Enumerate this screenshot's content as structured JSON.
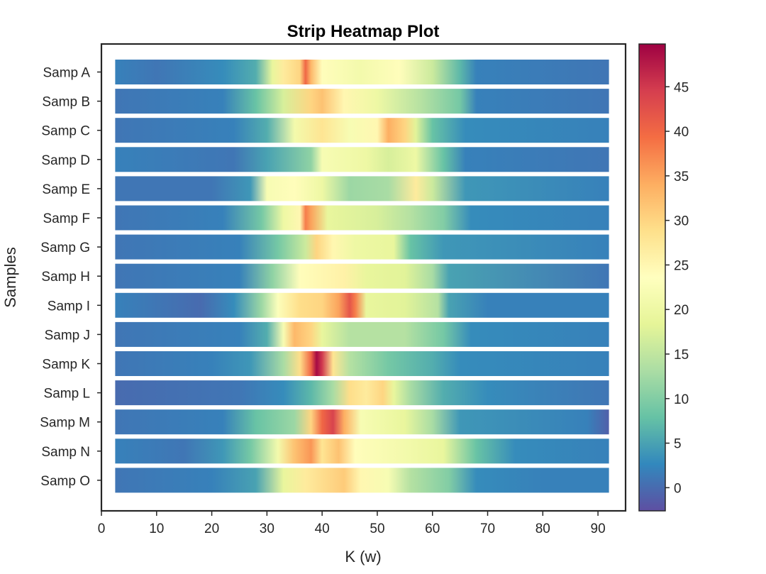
{
  "chart_data": {
    "type": "heatmap",
    "title": "Strip Heatmap Plot",
    "xlabel": "K (w)",
    "ylabel": "Samples",
    "xlim": [
      0,
      95
    ],
    "x_ticks": [
      "0",
      "10",
      "20",
      "30",
      "40",
      "50",
      "60",
      "70",
      "80",
      "90"
    ],
    "x_tick_values": [
      0,
      10,
      20,
      30,
      40,
      50,
      60,
      70,
      80,
      90
    ],
    "x_range": [
      2.5,
      92
    ],
    "color_range": [
      -2.6,
      49.8
    ],
    "colorbar_ticks": [
      "0",
      "5",
      "10",
      "15",
      "20",
      "25",
      "30",
      "35",
      "40",
      "45"
    ],
    "colorbar_tick_values": [
      0,
      5,
      10,
      15,
      20,
      25,
      30,
      35,
      40,
      45
    ],
    "colormap": [
      "#5e4fa2",
      "#3288bd",
      "#66c2a5",
      "#abdda4",
      "#e6f598",
      "#ffffbf",
      "#fee08b",
      "#fdae61",
      "#f46d43",
      "#d53e4f",
      "#9e0142"
    ],
    "rows": [
      {
        "label": "Samp O",
        "profile": [
          [
            2.5,
            1
          ],
          [
            20,
            2
          ],
          [
            28,
            5
          ],
          [
            33,
            19
          ],
          [
            37,
            27
          ],
          [
            44,
            31
          ],
          [
            47,
            25
          ],
          [
            52,
            22
          ],
          [
            56,
            14
          ],
          [
            63,
            10
          ],
          [
            68,
            3
          ],
          [
            80,
            2
          ],
          [
            92,
            2
          ]
        ]
      },
      {
        "label": "Samp N",
        "profile": [
          [
            2.5,
            2
          ],
          [
            15,
            1
          ],
          [
            22,
            4
          ],
          [
            27,
            9
          ],
          [
            32,
            21
          ],
          [
            35,
            32
          ],
          [
            38,
            36
          ],
          [
            40,
            28
          ],
          [
            43,
            32
          ],
          [
            46,
            24
          ],
          [
            55,
            21
          ],
          [
            62,
            19
          ],
          [
            68,
            8
          ],
          [
            75,
            3
          ],
          [
            92,
            2
          ]
        ]
      },
      {
        "label": "Samp M",
        "profile": [
          [
            2.5,
            1
          ],
          [
            22,
            2
          ],
          [
            28,
            8
          ],
          [
            35,
            12
          ],
          [
            38,
            30
          ],
          [
            40,
            40
          ],
          [
            42,
            44
          ],
          [
            44,
            34
          ],
          [
            47,
            22
          ],
          [
            55,
            19
          ],
          [
            60,
            13
          ],
          [
            65,
            4
          ],
          [
            88,
            2
          ],
          [
            92,
            -1
          ]
        ]
      },
      {
        "label": "Samp L",
        "profile": [
          [
            2.5,
            0
          ],
          [
            25,
            1
          ],
          [
            33,
            3
          ],
          [
            38,
            7
          ],
          [
            42,
            13
          ],
          [
            45,
            29
          ],
          [
            48,
            27
          ],
          [
            51,
            30
          ],
          [
            53,
            19
          ],
          [
            56,
            13
          ],
          [
            62,
            6
          ],
          [
            70,
            3
          ],
          [
            92,
            1
          ]
        ]
      },
      {
        "label": "Samp K",
        "profile": [
          [
            2.5,
            1
          ],
          [
            20,
            2
          ],
          [
            27,
            4
          ],
          [
            33,
            13
          ],
          [
            36,
            29
          ],
          [
            38,
            40
          ],
          [
            39,
            49
          ],
          [
            40,
            45
          ],
          [
            42,
            28
          ],
          [
            45,
            14
          ],
          [
            52,
            9
          ],
          [
            60,
            6
          ],
          [
            65,
            3
          ],
          [
            92,
            2
          ]
        ]
      },
      {
        "label": "Samp J",
        "profile": [
          [
            2.5,
            1
          ],
          [
            25,
            2
          ],
          [
            30,
            6
          ],
          [
            33,
            22
          ],
          [
            35,
            33
          ],
          [
            38,
            30
          ],
          [
            40,
            19
          ],
          [
            45,
            14
          ],
          [
            55,
            14
          ],
          [
            62,
            9
          ],
          [
            67,
            3
          ],
          [
            92,
            2
          ]
        ]
      },
      {
        "label": "Samp I",
        "profile": [
          [
            2.5,
            2
          ],
          [
            18,
            0
          ],
          [
            24,
            3
          ],
          [
            29,
            12
          ],
          [
            32,
            23
          ],
          [
            36,
            29
          ],
          [
            40,
            30
          ],
          [
            43,
            35
          ],
          [
            45,
            42
          ],
          [
            46,
            38
          ],
          [
            48,
            19
          ],
          [
            55,
            18
          ],
          [
            61,
            14
          ],
          [
            63,
            5
          ],
          [
            70,
            2
          ],
          [
            92,
            2
          ]
        ]
      },
      {
        "label": "Samp H",
        "profile": [
          [
            2.5,
            1
          ],
          [
            25,
            2
          ],
          [
            31,
            11
          ],
          [
            36,
            24
          ],
          [
            44,
            26
          ],
          [
            48,
            19
          ],
          [
            55,
            18
          ],
          [
            60,
            13
          ],
          [
            63,
            5
          ],
          [
            92,
            1
          ]
        ]
      },
      {
        "label": "Samp G",
        "profile": [
          [
            2.5,
            1
          ],
          [
            25,
            2
          ],
          [
            32,
            9
          ],
          [
            37,
            16
          ],
          [
            39,
            30
          ],
          [
            42,
            25
          ],
          [
            46,
            20
          ],
          [
            53,
            19
          ],
          [
            56,
            8
          ],
          [
            62,
            4
          ],
          [
            92,
            2
          ]
        ]
      },
      {
        "label": "Samp F",
        "profile": [
          [
            2.5,
            1
          ],
          [
            22,
            2
          ],
          [
            29,
            9
          ],
          [
            33,
            20
          ],
          [
            36,
            25
          ],
          [
            37,
            38
          ],
          [
            38,
            35
          ],
          [
            41,
            19
          ],
          [
            50,
            17
          ],
          [
            56,
            14
          ],
          [
            62,
            10
          ],
          [
            67,
            3
          ],
          [
            92,
            2
          ]
        ]
      },
      {
        "label": "Samp E",
        "profile": [
          [
            2.5,
            1
          ],
          [
            20,
            1
          ],
          [
            27,
            4
          ],
          [
            30,
            22
          ],
          [
            35,
            24
          ],
          [
            40,
            20
          ],
          [
            45,
            12
          ],
          [
            52,
            13
          ],
          [
            57,
            27
          ],
          [
            60,
            16
          ],
          [
            66,
            4
          ],
          [
            92,
            2
          ]
        ]
      },
      {
        "label": "Samp D",
        "profile": [
          [
            2.5,
            2
          ],
          [
            24,
            1
          ],
          [
            30,
            5
          ],
          [
            38,
            11
          ],
          [
            40,
            22
          ],
          [
            48,
            20
          ],
          [
            52,
            17
          ],
          [
            57,
            20
          ],
          [
            62,
            8
          ],
          [
            66,
            2
          ],
          [
            92,
            1
          ]
        ]
      },
      {
        "label": "Samp C",
        "profile": [
          [
            2.5,
            1
          ],
          [
            24,
            2
          ],
          [
            30,
            6
          ],
          [
            35,
            21
          ],
          [
            40,
            28
          ],
          [
            45,
            22
          ],
          [
            50,
            25
          ],
          [
            52,
            34
          ],
          [
            55,
            30
          ],
          [
            57,
            18
          ],
          [
            60,
            8
          ],
          [
            66,
            3
          ],
          [
            92,
            2
          ]
        ]
      },
      {
        "label": "Samp B",
        "profile": [
          [
            2.5,
            1
          ],
          [
            22,
            2
          ],
          [
            28,
            8
          ],
          [
            33,
            17
          ],
          [
            38,
            30
          ],
          [
            40,
            32
          ],
          [
            44,
            25
          ],
          [
            50,
            20
          ],
          [
            58,
            14
          ],
          [
            65,
            9
          ],
          [
            68,
            2
          ],
          [
            92,
            1
          ]
        ]
      },
      {
        "label": "Samp A",
        "profile": [
          [
            2.5,
            2
          ],
          [
            10,
            1
          ],
          [
            22,
            3
          ],
          [
            28,
            6
          ],
          [
            31,
            19
          ],
          [
            33,
            27
          ],
          [
            36,
            30
          ],
          [
            37,
            40
          ],
          [
            38,
            33
          ],
          [
            40,
            24
          ],
          [
            47,
            21
          ],
          [
            54,
            24
          ],
          [
            60,
            16
          ],
          [
            65,
            7
          ],
          [
            68,
            2
          ],
          [
            92,
            1
          ]
        ]
      }
    ]
  }
}
